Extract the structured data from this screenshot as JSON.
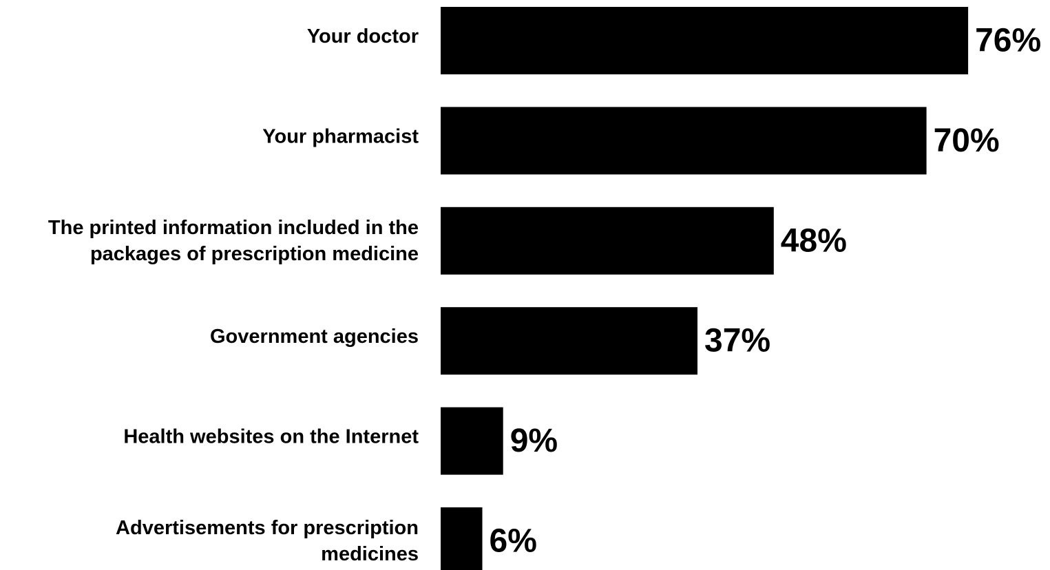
{
  "chart_data": {
    "type": "bar",
    "orientation": "horizontal",
    "categories": [
      "Your doctor",
      "Your pharmacist",
      "The printed information included in the packages of prescription medicine",
      "Government agencies",
      "Health websites on the Internet",
      "Advertisements for prescription medicines"
    ],
    "category_lines": [
      [
        "Your doctor"
      ],
      [
        "Your pharmacist"
      ],
      [
        "The printed information included in the",
        "packages of prescription medicine"
      ],
      [
        "Government agencies"
      ],
      [
        "Health websites on the Internet"
      ],
      [
        "Advertisements for prescription",
        "medicines"
      ]
    ],
    "values": [
      76,
      70,
      48,
      37,
      9,
      6
    ],
    "value_labels": [
      "76%",
      "70%",
      "48%",
      "37%",
      "9%",
      "6%"
    ],
    "title": "",
    "xlabel": "",
    "ylabel": "",
    "xlim": [
      0,
      100
    ],
    "grid": false,
    "legend": "none",
    "bar_color": "#000000",
    "text_color": "#000000"
  }
}
